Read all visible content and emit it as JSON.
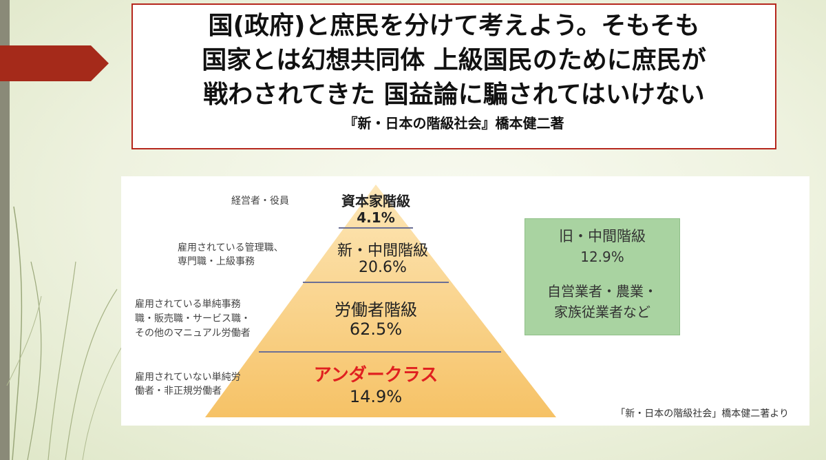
{
  "title": {
    "lines": [
      "国(政府)と庶民を分けて考えよう。そもそも",
      "国家とは幻想共同体 上級国民のために庶民が",
      "戦わされてきた 国益論に騙されてはいけない"
    ],
    "subtitle": "『新・日本の階級社会』橋本健二著"
  },
  "pyramid": {
    "tiers": [
      {
        "name": "資本家階級",
        "pct": "4.1%",
        "desc": [
          "経営者・役員"
        ]
      },
      {
        "name": "新・中間階級",
        "pct": "20.6%",
        "desc": [
          "雇用されている管理職、",
          "専門職・上級事務"
        ]
      },
      {
        "name": "労働者階級",
        "pct": "62.5%",
        "desc": [
          "雇用されている単純事務",
          "職・販売職・サービス職・",
          "その他のマニュアル労働者"
        ]
      },
      {
        "name": "アンダークラス",
        "pct": "14.9%",
        "desc": [
          "雇用されていない単純労",
          "働者・非正規労働者"
        ]
      }
    ],
    "old_middle": {
      "name": "旧・中間階級",
      "pct": "12.9%",
      "desc": [
        "自営業者・農業・",
        "家族従業者など"
      ]
    },
    "source": "「新・日本の階級社会」橋本健二著より"
  },
  "colors": {
    "accent_red": "#b5261c",
    "pyramid_top": "#fde7b8",
    "pyramid_bottom": "#f7c56f",
    "underclass_red": "#e02020",
    "old_middle_green": "#a9d3a1"
  }
}
